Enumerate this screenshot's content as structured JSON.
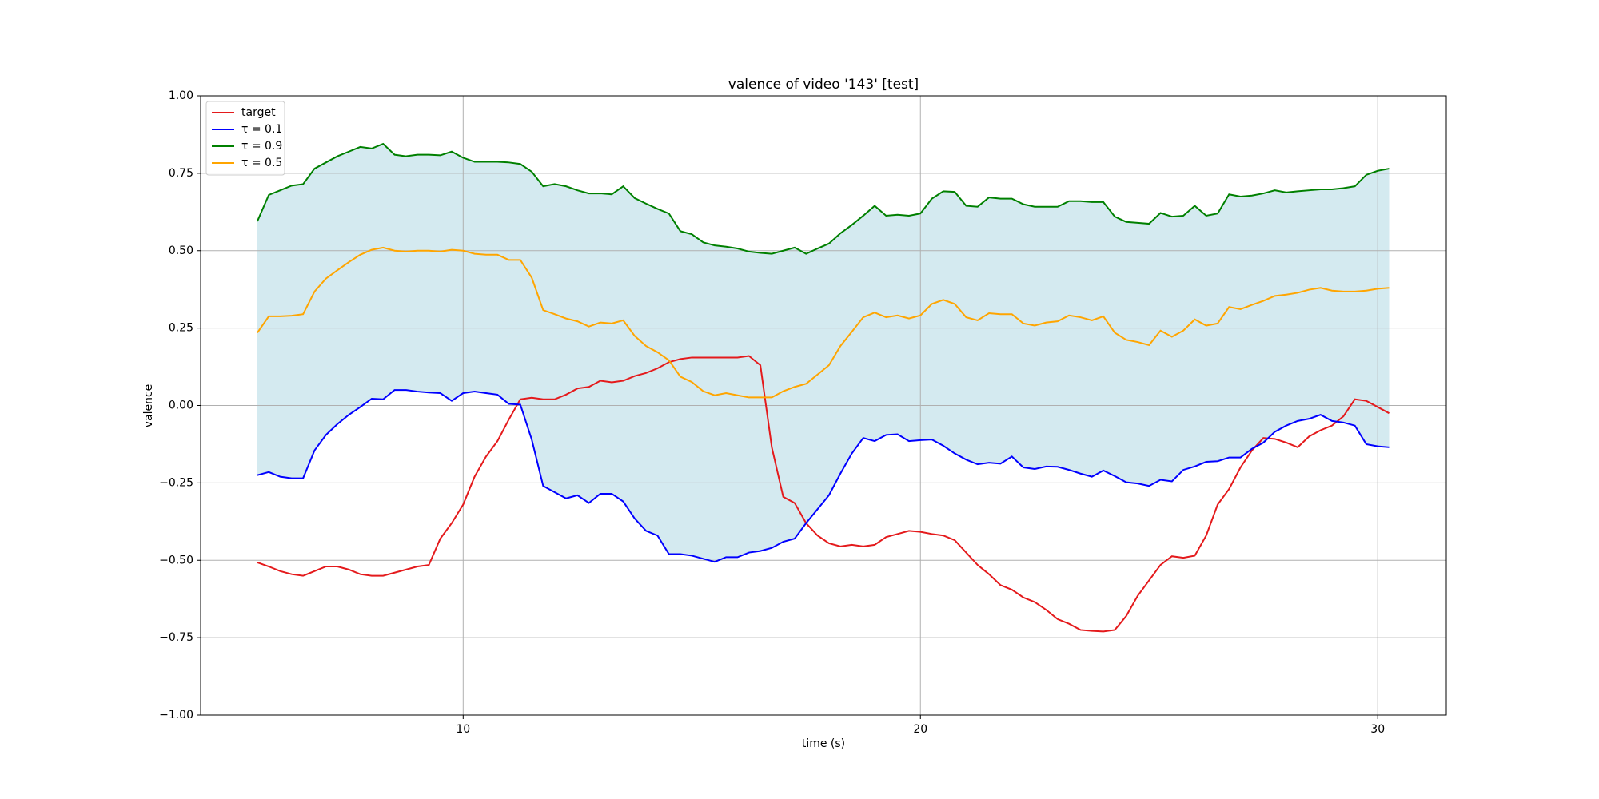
{
  "chart_data": {
    "type": "line",
    "title": "valence of video '143' [test]",
    "x_label": "time (s)",
    "y_label": "valence",
    "x": [
      5.5,
      5.75,
      6.0,
      6.25,
      6.5,
      6.75,
      7.0,
      7.25,
      7.5,
      7.75,
      8.0,
      8.25,
      8.5,
      8.75,
      9.0,
      9.25,
      9.5,
      9.75,
      10.0,
      10.25,
      10.5,
      10.75,
      11.0,
      11.25,
      11.5,
      11.75,
      12.0,
      12.25,
      12.5,
      12.75,
      13.0,
      13.25,
      13.5,
      13.75,
      14.0,
      14.25,
      14.5,
      14.75,
      15.0,
      15.25,
      15.5,
      15.75,
      16.0,
      16.25,
      16.5,
      16.75,
      17.0,
      17.25,
      17.5,
      17.75,
      18.0,
      18.25,
      18.5,
      18.75,
      19.0,
      19.25,
      19.5,
      19.75,
      20.0,
      20.25,
      20.5,
      20.75,
      21.0,
      21.25,
      21.5,
      21.75,
      22.0,
      22.25,
      22.5,
      22.75,
      23.0,
      23.25,
      23.5,
      23.75,
      24.0,
      24.25,
      24.5,
      24.75,
      25.0,
      25.25,
      25.5,
      25.75,
      26.0,
      26.25,
      26.5,
      26.75,
      27.0,
      27.25,
      27.5,
      27.75,
      28.0,
      28.25,
      28.5,
      28.75,
      29.0,
      29.25,
      29.5,
      29.75,
      30.0,
      30.25
    ],
    "series": [
      {
        "name": "target",
        "color": "#e41a1c",
        "values": [
          -0.507,
          -0.52,
          -0.535,
          -0.545,
          -0.55,
          -0.535,
          -0.52,
          -0.52,
          -0.53,
          -0.545,
          -0.55,
          -0.55,
          -0.54,
          -0.53,
          -0.52,
          -0.515,
          -0.43,
          -0.38,
          -0.32,
          -0.23,
          -0.165,
          -0.115,
          -0.045,
          0.02,
          0.025,
          0.02,
          0.02,
          0.035,
          0.055,
          0.06,
          0.08,
          0.075,
          0.08,
          0.095,
          0.105,
          0.12,
          0.14,
          0.15,
          0.155,
          0.155,
          0.155,
          0.155,
          0.155,
          0.16,
          0.13,
          -0.135,
          -0.295,
          -0.315,
          -0.38,
          -0.42,
          -0.445,
          -0.455,
          -0.45,
          -0.455,
          -0.45,
          -0.425,
          -0.415,
          -0.405,
          -0.408,
          -0.415,
          -0.42,
          -0.435,
          -0.475,
          -0.515,
          -0.545,
          -0.58,
          -0.595,
          -0.62,
          -0.635,
          -0.66,
          -0.69,
          -0.705,
          -0.725,
          -0.728,
          -0.73,
          -0.725,
          -0.68,
          -0.615,
          -0.565,
          -0.515,
          -0.487,
          -0.492,
          -0.485,
          -0.42,
          -0.32,
          -0.27,
          -0.2,
          -0.145,
          -0.105,
          -0.108,
          -0.12,
          -0.135,
          -0.1,
          -0.08,
          -0.065,
          -0.035,
          0.02,
          0.015,
          -0.005,
          -0.025
        ]
      },
      {
        "name": "τ = 0.1",
        "color": "#0000ff",
        "values": [
          -0.225,
          -0.215,
          -0.23,
          -0.235,
          -0.235,
          -0.145,
          -0.095,
          -0.06,
          -0.03,
          -0.005,
          0.022,
          0.02,
          0.05,
          0.05,
          0.045,
          0.042,
          0.04,
          0.015,
          0.04,
          0.045,
          0.04,
          0.035,
          0.005,
          0.003,
          -0.11,
          -0.26,
          -0.28,
          -0.3,
          -0.29,
          -0.315,
          -0.285,
          -0.285,
          -0.31,
          -0.365,
          -0.405,
          -0.42,
          -0.48,
          -0.48,
          -0.485,
          -0.495,
          -0.505,
          -0.49,
          -0.49,
          -0.475,
          -0.47,
          -0.46,
          -0.44,
          -0.43,
          -0.38,
          -0.335,
          -0.29,
          -0.22,
          -0.155,
          -0.105,
          -0.115,
          -0.095,
          -0.093,
          -0.115,
          -0.112,
          -0.11,
          -0.13,
          -0.155,
          -0.175,
          -0.19,
          -0.185,
          -0.188,
          -0.165,
          -0.2,
          -0.205,
          -0.197,
          -0.198,
          -0.208,
          -0.22,
          -0.23,
          -0.21,
          -0.228,
          -0.248,
          -0.252,
          -0.26,
          -0.24,
          -0.245,
          -0.208,
          -0.197,
          -0.182,
          -0.18,
          -0.168,
          -0.168,
          -0.14,
          -0.12,
          -0.085,
          -0.065,
          -0.05,
          -0.043,
          -0.03,
          -0.05,
          -0.055,
          -0.065,
          -0.125,
          -0.132,
          -0.135
        ]
      },
      {
        "name": "τ = 0.9",
        "color": "#008000",
        "values": [
          0.595,
          0.68,
          0.695,
          0.71,
          0.715,
          0.765,
          0.785,
          0.805,
          0.82,
          0.835,
          0.83,
          0.845,
          0.81,
          0.805,
          0.81,
          0.81,
          0.808,
          0.82,
          0.8,
          0.787,
          0.787,
          0.787,
          0.785,
          0.78,
          0.755,
          0.708,
          0.715,
          0.708,
          0.695,
          0.685,
          0.685,
          0.682,
          0.708,
          0.67,
          0.652,
          0.635,
          0.62,
          0.563,
          0.553,
          0.527,
          0.517,
          0.513,
          0.507,
          0.497,
          0.493,
          0.49,
          0.5,
          0.51,
          0.49,
          0.507,
          0.523,
          0.556,
          0.583,
          0.613,
          0.645,
          0.613,
          0.616,
          0.613,
          0.62,
          0.668,
          0.692,
          0.69,
          0.645,
          0.642,
          0.672,
          0.668,
          0.668,
          0.65,
          0.642,
          0.642,
          0.642,
          0.66,
          0.66,
          0.657,
          0.657,
          0.61,
          0.593,
          0.59,
          0.587,
          0.622,
          0.61,
          0.613,
          0.645,
          0.613,
          0.62,
          0.682,
          0.675,
          0.678,
          0.685,
          0.695,
          0.688,
          0.692,
          0.695,
          0.698,
          0.698,
          0.702,
          0.708,
          0.745,
          0.758,
          0.765
        ]
      },
      {
        "name": "τ = 0.5",
        "color": "#ffa500",
        "values": [
          0.235,
          0.288,
          0.288,
          0.29,
          0.295,
          0.368,
          0.41,
          0.437,
          0.463,
          0.487,
          0.503,
          0.51,
          0.5,
          0.497,
          0.5,
          0.5,
          0.497,
          0.503,
          0.5,
          0.49,
          0.487,
          0.487,
          0.47,
          0.47,
          0.413,
          0.308,
          0.295,
          0.281,
          0.272,
          0.255,
          0.268,
          0.265,
          0.275,
          0.225,
          0.192,
          0.172,
          0.146,
          0.093,
          0.076,
          0.046,
          0.033,
          0.04,
          0.033,
          0.026,
          0.026,
          0.026,
          0.046,
          0.06,
          0.07,
          0.1,
          0.13,
          0.192,
          0.238,
          0.285,
          0.3,
          0.285,
          0.291,
          0.281,
          0.291,
          0.328,
          0.341,
          0.328,
          0.285,
          0.275,
          0.298,
          0.295,
          0.295,
          0.265,
          0.258,
          0.268,
          0.272,
          0.291,
          0.285,
          0.275,
          0.288,
          0.235,
          0.212,
          0.205,
          0.195,
          0.242,
          0.222,
          0.242,
          0.278,
          0.258,
          0.265,
          0.318,
          0.311,
          0.325,
          0.338,
          0.354,
          0.358,
          0.364,
          0.374,
          0.38,
          0.371,
          0.368,
          0.368,
          0.371,
          0.377,
          0.38
        ]
      }
    ],
    "fill_color": "#d4eaf0",
    "xlim": [
      4.26,
      31.5
    ],
    "ylim": [
      -1,
      1
    ],
    "xticks": [
      10,
      20,
      30
    ],
    "yticks": [
      {
        "value": -1,
        "label": "−1.00"
      },
      {
        "value": -0.75,
        "label": "−0.75"
      },
      {
        "value": -0.5,
        "label": "−0.50"
      },
      {
        "value": -0.25,
        "label": "−0.25"
      },
      {
        "value": 0,
        "label": "0.00"
      },
      {
        "value": 0.25,
        "label": "0.25"
      },
      {
        "value": 0.5,
        "label": "0.50"
      },
      {
        "value": 0.75,
        "label": "0.75"
      },
      {
        "value": 1,
        "label": "1.00"
      }
    ],
    "grid": true,
    "legend": "upper left"
  }
}
